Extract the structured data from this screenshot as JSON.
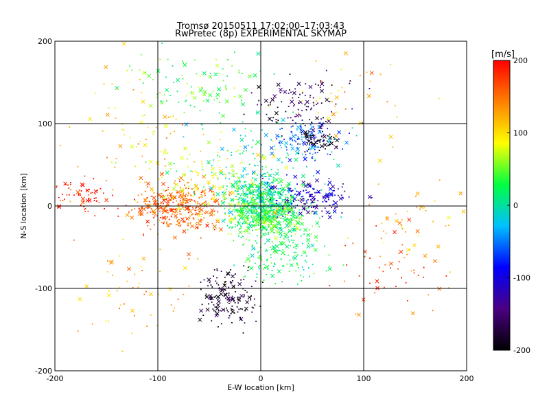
{
  "chart_data": {
    "type": "scatter",
    "title": "Tromsø 20150511 17:02:00–17:03:43",
    "subtitle": "RwPretec (8p) EXPERIMENTAL SKYMAP",
    "xlabel": "E-W location [km]",
    "ylabel": "N-S location [km]",
    "xlim": [
      -200,
      200
    ],
    "ylim": [
      -200,
      200
    ],
    "xticks": [
      "-200",
      "-100",
      "0",
      "100",
      "200"
    ],
    "yticks": [
      "-200",
      "-100",
      "0",
      "100",
      "200"
    ],
    "grid": true,
    "markers": [
      "dot",
      "x"
    ],
    "colorbar": {
      "label": "[m/s]",
      "range": [
        -200,
        200
      ],
      "ticks": [
        "-200",
        "-100",
        "0",
        "100",
        "200"
      ],
      "colormap": [
        "#000000",
        "#4b0082",
        "#0000ff",
        "#00c0ff",
        "#00ff40",
        "#ffff00",
        "#ff8000",
        "#ff0000"
      ]
    },
    "clusters": [
      {
        "x": 0,
        "y": 5,
        "spread_x": 22,
        "spread_y": 22,
        "value": 10,
        "count": 520
      },
      {
        "x": 10,
        "y": -15,
        "spread_x": 30,
        "spread_y": 20,
        "value": 40,
        "count": 300
      },
      {
        "x": -80,
        "y": 0,
        "spread_x": 30,
        "spread_y": 20,
        "value": 160,
        "count": 360
      },
      {
        "x": -175,
        "y": 15,
        "spread_x": 20,
        "spread_y": 15,
        "value": 190,
        "count": 70
      },
      {
        "x": 50,
        "y": 10,
        "spread_x": 30,
        "spread_y": 18,
        "value": -110,
        "count": 160
      },
      {
        "x": 45,
        "y": 80,
        "spread_x": 25,
        "spread_y": 15,
        "value": -60,
        "count": 130
      },
      {
        "x": 55,
        "y": 80,
        "spread_x": 12,
        "spread_y": 8,
        "value": -200,
        "count": 60
      },
      {
        "x": 40,
        "y": 120,
        "spread_x": 35,
        "spread_y": 25,
        "value": -160,
        "count": 110
      },
      {
        "x": -30,
        "y": -110,
        "spread_x": 20,
        "spread_y": 25,
        "value": -180,
        "count": 160
      },
      {
        "x": 20,
        "y": -60,
        "spread_x": 30,
        "spread_y": 25,
        "value": 20,
        "count": 160
      },
      {
        "x": -60,
        "y": 150,
        "spread_x": 45,
        "spread_y": 30,
        "value": 40,
        "count": 100
      },
      {
        "x": -120,
        "y": 90,
        "spread_x": 50,
        "spread_y": 60,
        "value": 110,
        "count": 80
      },
      {
        "x": 0,
        "y": 50,
        "spread_x": 60,
        "spread_y": 40,
        "value": 0,
        "count": 130
      },
      {
        "x": 120,
        "y": -80,
        "spread_x": 40,
        "spread_y": 40,
        "value": 170,
        "count": 45
      },
      {
        "x": 150,
        "y": -20,
        "spread_x": 40,
        "spread_y": 40,
        "value": 120,
        "count": 50
      },
      {
        "x": -120,
        "y": -100,
        "spread_x": 50,
        "spread_y": 50,
        "value": 130,
        "count": 55
      },
      {
        "x": -40,
        "y": 30,
        "spread_x": 45,
        "spread_y": 35,
        "value": 80,
        "count": 160
      },
      {
        "x": 100,
        "y": 130,
        "spread_x": 50,
        "spread_y": 35,
        "value": 120,
        "count": 40
      }
    ]
  }
}
